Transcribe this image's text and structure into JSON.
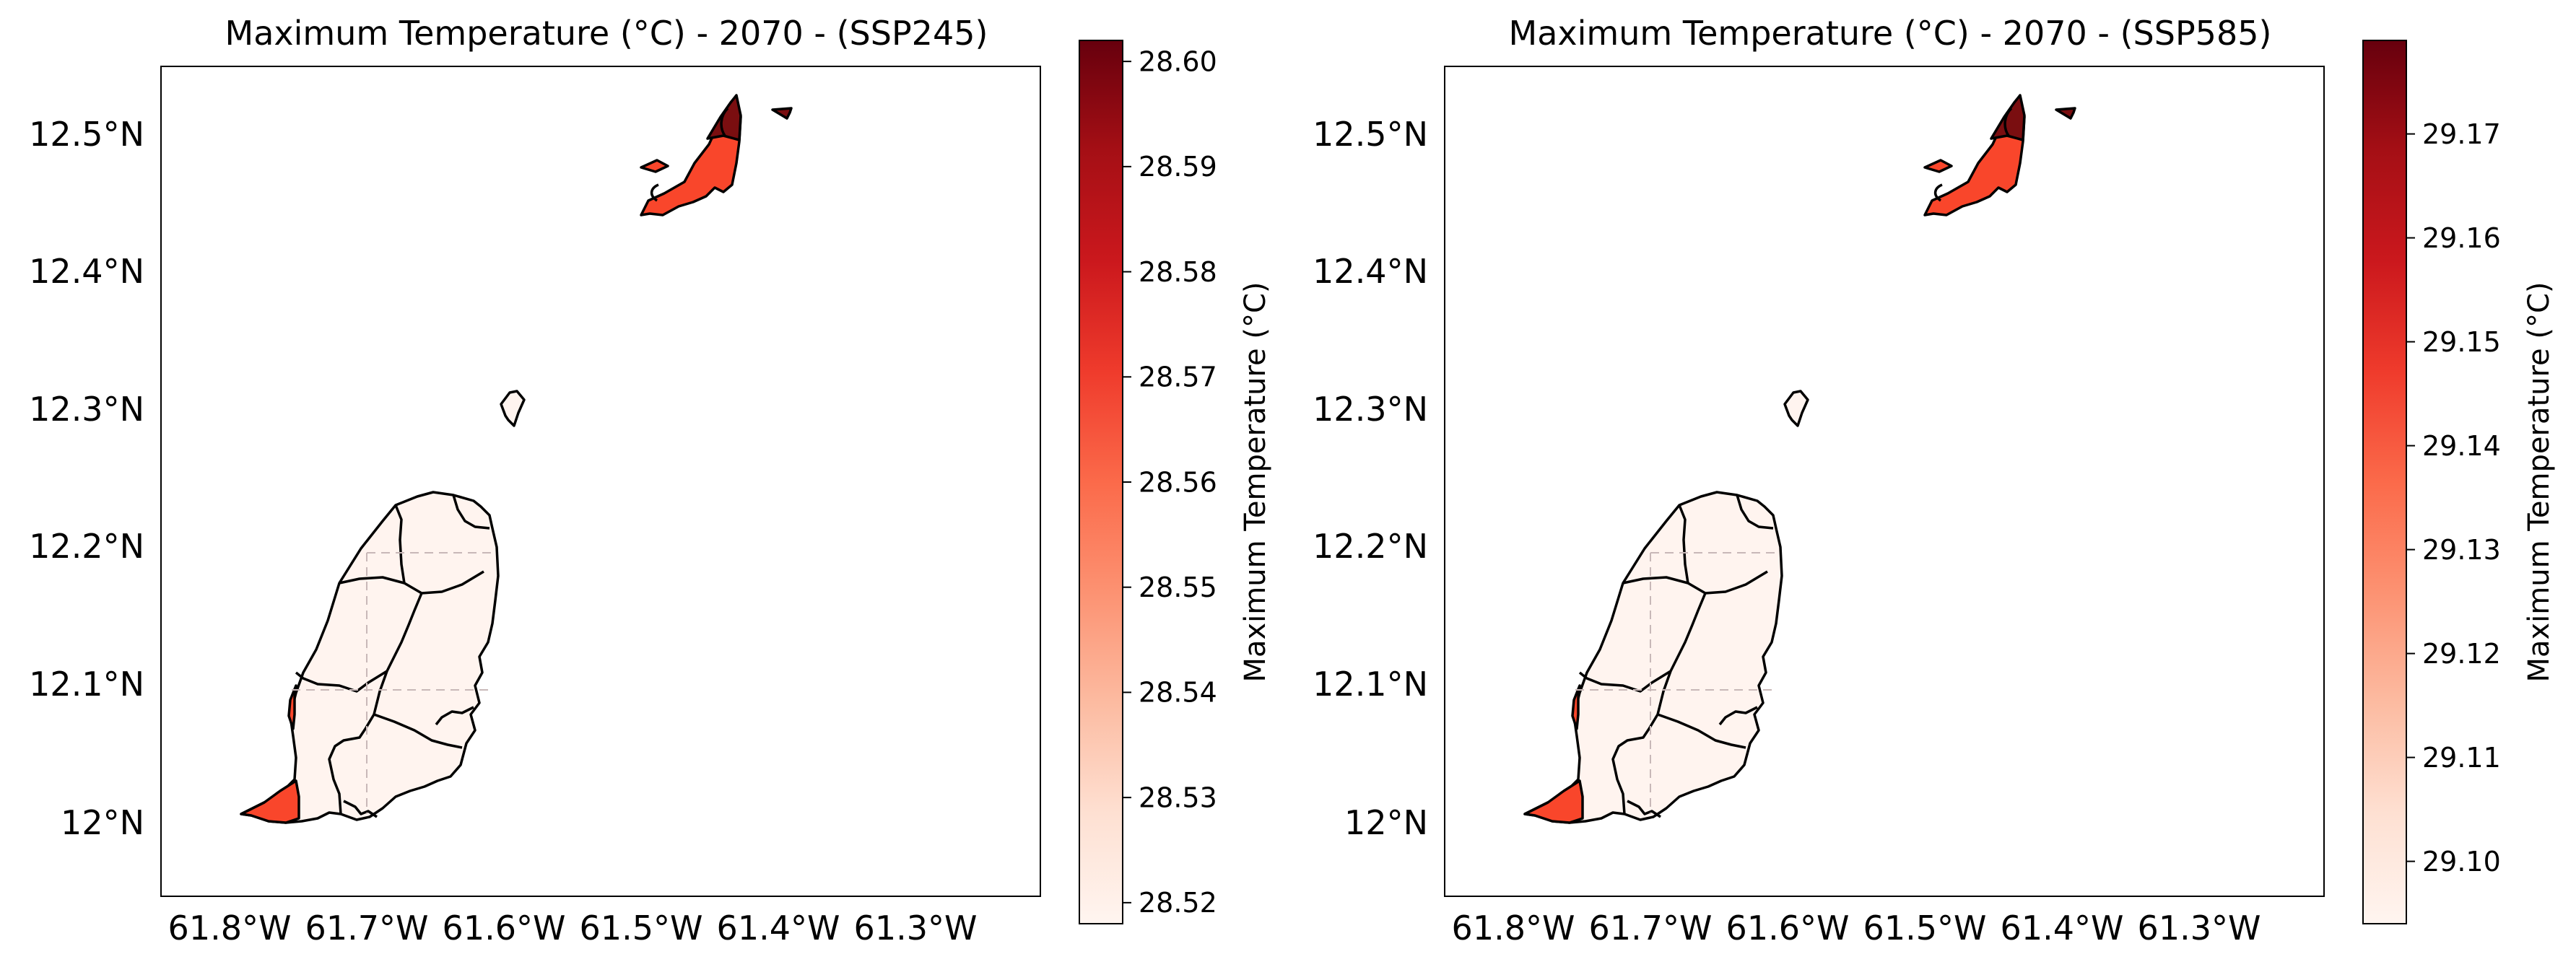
{
  "panels": [
    {
      "title": "Maximum Temperature (°C) - 2070 - (SSP245)",
      "colorbar": {
        "label": "Maximum Temperature (°C)",
        "min": 28.518,
        "max": 28.602,
        "ticks": [
          "28.52",
          "28.53",
          "28.54",
          "28.55",
          "28.56",
          "28.57",
          "28.58",
          "28.59",
          "28.60"
        ]
      },
      "lat_labels": [
        "12.5°N",
        "12.4°N",
        "12.3°N",
        "12.2°N",
        "12.1°N",
        "12°N"
      ],
      "lon_labels": [
        "61.8°W",
        "61.7°W",
        "61.6°W",
        "61.5°W",
        "61.4°W",
        "61.3°W"
      ]
    },
    {
      "title": "Maximum Temperature (°C) - 2070 - (SSP585)",
      "colorbar": {
        "label": "Maximum Temperature (°C)",
        "min": 29.094,
        "max": 29.179,
        "ticks": [
          "29.10",
          "29.11",
          "29.12",
          "29.13",
          "29.14",
          "29.15",
          "29.16",
          "29.17"
        ]
      },
      "lat_labels": [
        "12.5°N",
        "12.4°N",
        "12.3°N",
        "12.2°N",
        "12.1°N",
        "12°N"
      ],
      "lon_labels": [
        "61.8°W",
        "61.7°W",
        "61.6°W",
        "61.5°W",
        "61.4°W",
        "61.3°W"
      ]
    }
  ],
  "colors": {
    "colormap": "Reds",
    "colormap_stops": [
      "#fff5f0",
      "#fee0d2",
      "#fcbba1",
      "#fc9272",
      "#fb6a4a",
      "#ef3b2c",
      "#cb181d",
      "#a50f15",
      "#67000d"
    ],
    "low_region_fill": "#fff4ef",
    "mid_region_fill": "#f9462b",
    "high_region_fill": "#7a0e10",
    "outline": "#000000",
    "gridline": "#c8b8b8"
  }
}
